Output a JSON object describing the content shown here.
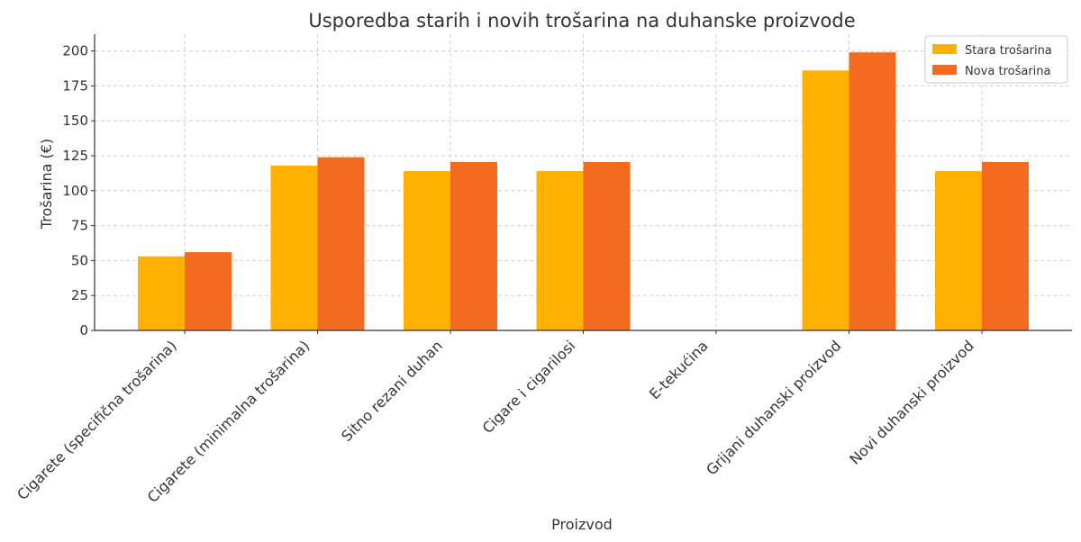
{
  "chart_data": {
    "type": "bar",
    "title": "Usporedba starih i novih trošarina na duhanske proizvode",
    "xlabel": "Proizvod",
    "ylabel": "Trošarina (€)",
    "ylim": [
      0,
      212
    ],
    "yticks": [
      0,
      25,
      50,
      75,
      100,
      125,
      150,
      175,
      200
    ],
    "grid": true,
    "legend_position": "top-right",
    "categories": [
      "Cigarete (specifična trošarina)",
      "Cigarete (minimalna trošarina)",
      "Sitno rezani duhan",
      "Cigare i cigarilosi",
      "E-tekućina",
      "Grijani duhanski proizvod",
      "Novi duhanski proizvod"
    ],
    "series": [
      {
        "name": "Stara trošarina",
        "color": "#FFB000",
        "values": [
          53,
          118,
          114,
          114,
          0,
          186,
          114
        ]
      },
      {
        "name": "Nova trošarina",
        "color": "#F26B21",
        "values": [
          56,
          124,
          120.5,
          120.5,
          0,
          199,
          120.5
        ]
      }
    ]
  }
}
